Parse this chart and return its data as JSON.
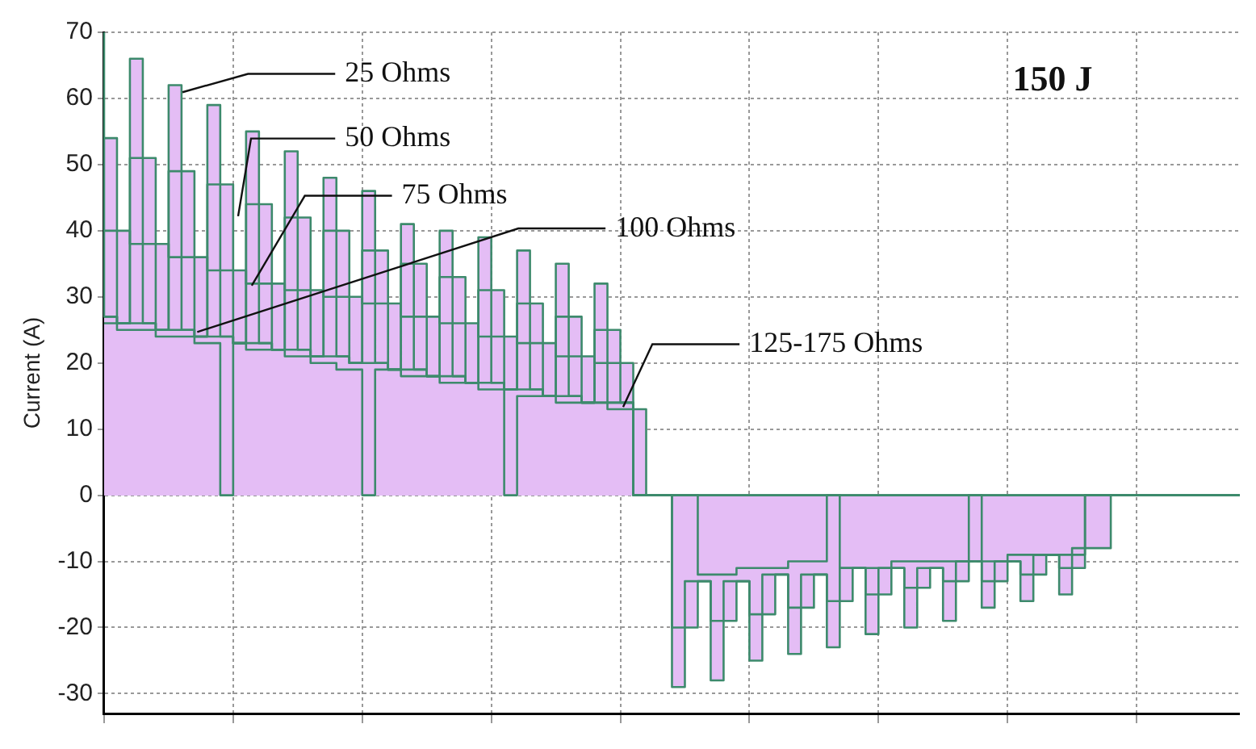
{
  "chart_data": {
    "type": "step",
    "ylabel": "Current (A)",
    "categories": [
      null,
      null,
      null,
      null,
      null,
      null,
      null,
      null,
      null,
      null,
      null,
      null,
      null,
      null,
      null,
      null,
      null,
      null,
      null,
      null,
      null,
      null,
      null,
      null,
      null,
      null,
      null,
      null,
      null,
      null,
      null,
      null,
      null,
      null,
      null,
      null,
      null,
      null,
      null,
      null,
      null,
      null,
      null,
      null,
      null,
      null,
      null,
      null,
      null,
      null,
      null,
      null,
      null,
      null,
      null,
      null,
      null,
      null,
      null,
      null,
      null,
      null,
      null,
      null,
      null,
      null,
      null,
      null,
      null,
      null,
      null,
      null,
      null,
      null,
      null,
      null,
      null,
      null,
      null,
      null,
      null,
      null,
      null,
      null,
      null,
      null,
      null,
      null,
      null
    ],
    "ylim": [
      -33,
      70
    ],
    "yticks": [
      -30,
      -20,
      -10,
      0,
      10,
      20,
      30,
      40,
      50,
      60,
      70
    ],
    "grid": true,
    "tick_labels": "y",
    "series": [
      {
        "color": "#3d8a6c",
        "values": [
          26,
          26,
          25,
          25,
          25,
          24,
          24,
          24,
          23,
          23,
          0,
          23,
          22,
          22,
          22,
          21,
          21,
          20,
          20,
          19,
          19,
          0,
          19,
          19,
          18,
          18,
          18,
          17,
          17,
          17,
          16,
          16,
          0,
          15,
          15,
          15,
          14,
          14,
          14,
          14,
          13,
          13,
          13,
          0,
          0,
          0,
          0,
          -12,
          -12,
          -12,
          -11,
          -11,
          -11,
          -11,
          -10,
          -10,
          -10,
          0,
          -11,
          -11,
          -11,
          -11,
          -10,
          -10,
          -10,
          -10,
          -10,
          -10,
          0,
          -10,
          -10,
          -9,
          -9,
          -9,
          -9,
          -9,
          -8,
          -8,
          -8,
          0,
          0,
          0,
          0,
          0,
          0,
          0,
          0,
          0,
          0
        ]
      },
      {
        "color": "#3d8a6c",
        "values": [
          27,
          27,
          26,
          26,
          26,
          25,
          25,
          25,
          24,
          24,
          24,
          23,
          23,
          23,
          22,
          22,
          22,
          21,
          21,
          21,
          20,
          20,
          20,
          19,
          19,
          19,
          18,
          18,
          18,
          17,
          17,
          17,
          16,
          16,
          16,
          15,
          15,
          15,
          14,
          14,
          14,
          14,
          0,
          0,
          0,
          0,
          0,
          0,
          0,
          0,
          0,
          0,
          0,
          0,
          0,
          0,
          0,
          0,
          0,
          0,
          0,
          0,
          0,
          0,
          0,
          0,
          0,
          0,
          0,
          0,
          0,
          0,
          0,
          0,
          0,
          0,
          0,
          0,
          0,
          0,
          0,
          0,
          0,
          0,
          0,
          0,
          0,
          0,
          0
        ]
      },
      {
        "color": "#3d8a6c",
        "values": [
          40,
          40,
          40,
          38,
          38,
          38,
          36,
          36,
          36,
          34,
          34,
          34,
          32,
          32,
          32,
          31,
          31,
          31,
          30,
          30,
          30,
          29,
          29,
          29,
          27,
          27,
          27,
          26,
          26,
          26,
          24,
          24,
          24,
          23,
          23,
          23,
          21,
          21,
          21,
          20,
          20,
          20,
          0,
          0,
          0,
          0,
          0,
          0,
          0,
          0,
          0,
          0,
          0,
          0,
          0,
          0,
          0,
          0,
          0,
          0,
          0,
          0,
          0,
          0,
          0,
          0,
          0,
          0,
          0,
          0,
          0,
          0,
          0,
          0,
          0,
          0,
          0,
          0,
          0,
          0,
          0,
          0,
          0,
          0,
          0,
          0,
          0,
          0,
          0
        ]
      },
      {
        "color": "#3d8a6c",
        "values": [
          54,
          54,
          26,
          51,
          51,
          25,
          49,
          49,
          24,
          47,
          47,
          23,
          44,
          44,
          22,
          42,
          42,
          21,
          40,
          40,
          20,
          37,
          37,
          19,
          35,
          35,
          18,
          33,
          33,
          17,
          31,
          31,
          16,
          29,
          29,
          15,
          27,
          27,
          14,
          25,
          25,
          14,
          0,
          0,
          0,
          -20,
          -20,
          -13,
          -19,
          -19,
          -13,
          -18,
          -18,
          -12,
          -17,
          -17,
          -12,
          -16,
          -16,
          -11,
          -15,
          -15,
          -11,
          -14,
          -14,
          -11,
          -13,
          -13,
          -10,
          -13,
          -13,
          -10,
          -12,
          -12,
          -9,
          -11,
          -11,
          0,
          0,
          0,
          0,
          0,
          0,
          0,
          0,
          0,
          0,
          0,
          0
        ]
      },
      {
        "color": "#3d8a6c",
        "values": [
          70,
          27,
          26,
          66,
          26,
          25,
          62,
          25,
          24,
          59,
          24,
          23,
          55,
          23,
          22,
          52,
          22,
          21,
          48,
          21,
          20,
          46,
          20,
          19,
          41,
          19,
          18,
          40,
          18,
          17,
          39,
          17,
          16,
          37,
          16,
          15,
          35,
          15,
          14,
          32,
          14,
          14,
          0,
          0,
          0,
          -29,
          -13,
          -13,
          -28,
          -13,
          -13,
          -25,
          -12,
          -12,
          -24,
          -12,
          -12,
          -23,
          -11,
          -11,
          -21,
          -11,
          -11,
          -20,
          -11,
          -11,
          -19,
          -10,
          -10,
          -17,
          -10,
          -10,
          -16,
          -9,
          -9,
          -15,
          -9,
          0,
          0,
          0,
          0,
          0,
          0,
          0,
          0,
          0,
          0,
          0,
          0
        ]
      }
    ],
    "annotations": [
      "25 Ohms",
      "50 Ohms",
      "75 Ohms",
      "100 Ohms",
      "125-175 Ohms",
      "150 J"
    ]
  }
}
